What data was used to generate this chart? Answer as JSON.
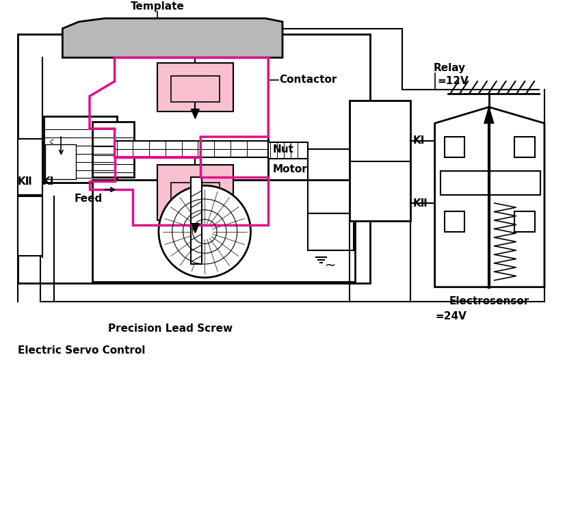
{
  "title": "Electric Servo Control",
  "bg_color": "#ffffff",
  "line_color": "#000000",
  "pink_fill": "#f9c0d0",
  "pink_outline": "#e0108a",
  "gray_fill": "#b8b8b8",
  "labels": {
    "template": "Template",
    "contactor": "Contactor",
    "relay": "Relay",
    "v12": "=12V",
    "v24": "=24V",
    "ki_right": "KI",
    "kii_right": "KⅡ",
    "ki_left": "KⅠ",
    "kii_left": "KⅡ",
    "feed": "Feed",
    "nut": "Nut",
    "motor": "Motor",
    "electrosensor": "Electrosensor",
    "precision_lead_screw": "Precision Lead Screw"
  }
}
